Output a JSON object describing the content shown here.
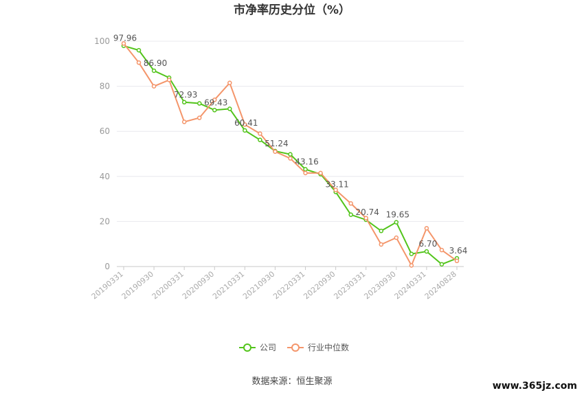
{
  "chart_data": {
    "type": "line",
    "title": "市净率历史分位（%）",
    "ylim": [
      0,
      100
    ],
    "yticks": [
      0,
      20,
      40,
      60,
      80,
      100
    ],
    "grid": true,
    "legend_position": "bottom",
    "x": [
      "20190331",
      "20190630",
      "20190930",
      "20191231",
      "20200331",
      "20200630",
      "20200930",
      "20201231",
      "20210331",
      "20210630",
      "20210930",
      "20211231",
      "20220331",
      "20220630",
      "20220930",
      "20221231",
      "20230331",
      "20230630",
      "20230930",
      "20231231",
      "20240331",
      "20240630",
      "20240828"
    ],
    "x_tick_labels": [
      "20190331",
      "20190930",
      "20200331",
      "20200930",
      "20210331",
      "20210930",
      "20220331",
      "20220930",
      "20230331",
      "20230930",
      "20240331",
      "20240828"
    ],
    "series": [
      {
        "name": "公司",
        "color": "#52c41a",
        "values": [
          97.96,
          96.0,
          86.9,
          83.8,
          72.93,
          72.4,
          69.43,
          70.0,
          60.41,
          56.2,
          51.24,
          49.8,
          43.16,
          41.0,
          33.11,
          23.0,
          20.74,
          15.8,
          19.65,
          5.6,
          6.7,
          1.0,
          3.64
        ],
        "labels": {
          "0": "97.96",
          "2": "86.90",
          "4": "72.93",
          "6": "69.43",
          "8": "60.41",
          "10": "51.24",
          "12": "43.16",
          "14": "33.11",
          "16": "20.74",
          "18": "19.65",
          "20": "6.70",
          "22": "3.64"
        }
      },
      {
        "name": "行业中位数",
        "color": "#f4956a",
        "values": [
          99.0,
          90.5,
          80.0,
          82.8,
          64.2,
          66.0,
          74.0,
          81.5,
          63.0,
          59.0,
          51.0,
          48.0,
          41.5,
          41.5,
          34.0,
          28.0,
          21.5,
          9.8,
          12.8,
          0.5,
          17.0,
          7.3,
          2.5
        ]
      }
    ]
  },
  "source_text": "数据来源：恒生聚源",
  "watermark_text": "www.365jz.com"
}
